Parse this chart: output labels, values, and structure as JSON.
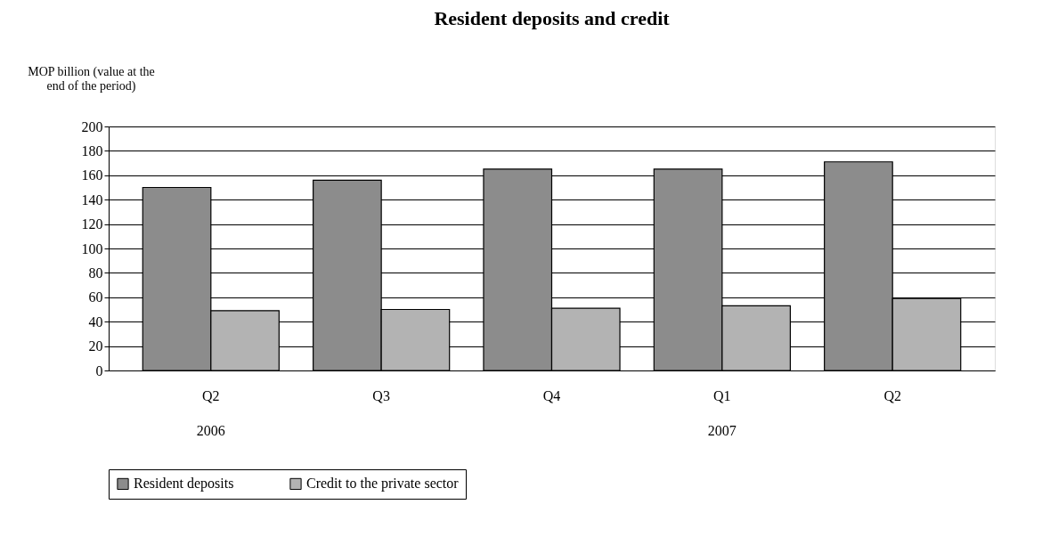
{
  "chart_data": {
    "type": "bar",
    "title": "Resident deposits and credit",
    "ylabel": "MOP billion (value at the end of the period)",
    "categories": [
      "Q2",
      "Q3",
      "Q4",
      "Q1",
      "Q2"
    ],
    "series": [
      {
        "name": "Resident deposits",
        "color": "#8c8c8c",
        "values": [
          150,
          156,
          165,
          165,
          171
        ]
      },
      {
        "name": "Credit to the private sector",
        "color": "#b3b3b3",
        "values": [
          49,
          50,
          51,
          53,
          59
        ]
      }
    ],
    "ylim": [
      0,
      200
    ],
    "yticks": [
      0,
      20,
      40,
      60,
      80,
      100,
      120,
      140,
      160,
      180,
      200
    ],
    "grid": "y",
    "legend": "bottom",
    "annotations": [
      "2006",
      "2007"
    ]
  }
}
